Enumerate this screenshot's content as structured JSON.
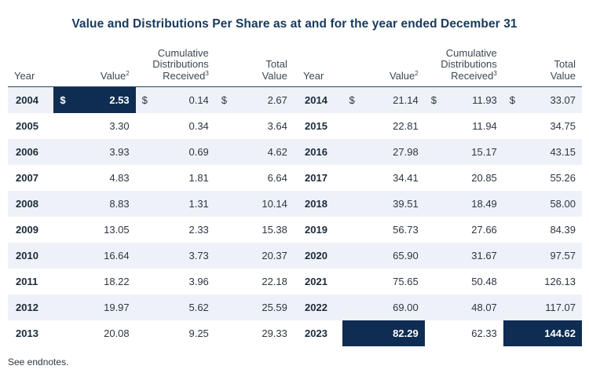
{
  "title": "Value and Distributions Per Share as at and for the year ended December 31",
  "headers": {
    "year": "Year",
    "value": "Value",
    "value_sup": "2",
    "cumulative_line1": "Cumulative",
    "cumulative_line2": "Distributions",
    "cumulative_line3": "Received",
    "cumulative_sup": "3",
    "total_line1": "Total",
    "total_line2": "Value"
  },
  "currency_symbol": "$",
  "rows": [
    {
      "left": {
        "year": "2004",
        "value": "2.53",
        "cumulative": "0.14",
        "total": "2.67"
      },
      "right": {
        "year": "2014",
        "value": "21.14",
        "cumulative": "11.93",
        "total": "33.07"
      }
    },
    {
      "left": {
        "year": "2005",
        "value": "3.30",
        "cumulative": "0.34",
        "total": "3.64"
      },
      "right": {
        "year": "2015",
        "value": "22.81",
        "cumulative": "11.94",
        "total": "34.75"
      }
    },
    {
      "left": {
        "year": "2006",
        "value": "3.93",
        "cumulative": "0.69",
        "total": "4.62"
      },
      "right": {
        "year": "2016",
        "value": "27.98",
        "cumulative": "15.17",
        "total": "43.15"
      }
    },
    {
      "left": {
        "year": "2007",
        "value": "4.83",
        "cumulative": "1.81",
        "total": "6.64"
      },
      "right": {
        "year": "2017",
        "value": "34.41",
        "cumulative": "20.85",
        "total": "55.26"
      }
    },
    {
      "left": {
        "year": "2008",
        "value": "8.83",
        "cumulative": "1.31",
        "total": "10.14"
      },
      "right": {
        "year": "2018",
        "value": "39.51",
        "cumulative": "18.49",
        "total": "58.00"
      }
    },
    {
      "left": {
        "year": "2009",
        "value": "13.05",
        "cumulative": "2.33",
        "total": "15.38"
      },
      "right": {
        "year": "2019",
        "value": "56.73",
        "cumulative": "27.66",
        "total": "84.39"
      }
    },
    {
      "left": {
        "year": "2010",
        "value": "16.64",
        "cumulative": "3.73",
        "total": "20.37"
      },
      "right": {
        "year": "2020",
        "value": "65.90",
        "cumulative": "31.67",
        "total": "97.57"
      }
    },
    {
      "left": {
        "year": "2011",
        "value": "18.22",
        "cumulative": "3.96",
        "total": "22.18"
      },
      "right": {
        "year": "2021",
        "value": "75.65",
        "cumulative": "50.48",
        "total": "126.13"
      }
    },
    {
      "left": {
        "year": "2012",
        "value": "19.97",
        "cumulative": "5.62",
        "total": "25.59"
      },
      "right": {
        "year": "2022",
        "value": "69.00",
        "cumulative": "48.07",
        "total": "117.07"
      }
    },
    {
      "left": {
        "year": "2013",
        "value": "20.08",
        "cumulative": "9.25",
        "total": "29.33"
      },
      "right": {
        "year": "2023",
        "value": "82.29",
        "cumulative": "62.33",
        "total": "144.62"
      }
    }
  ],
  "footnote": "See endnotes.",
  "colors": {
    "title": "#173a5e",
    "highlight": "#0f2d52",
    "stripe": "#eef2f8"
  }
}
